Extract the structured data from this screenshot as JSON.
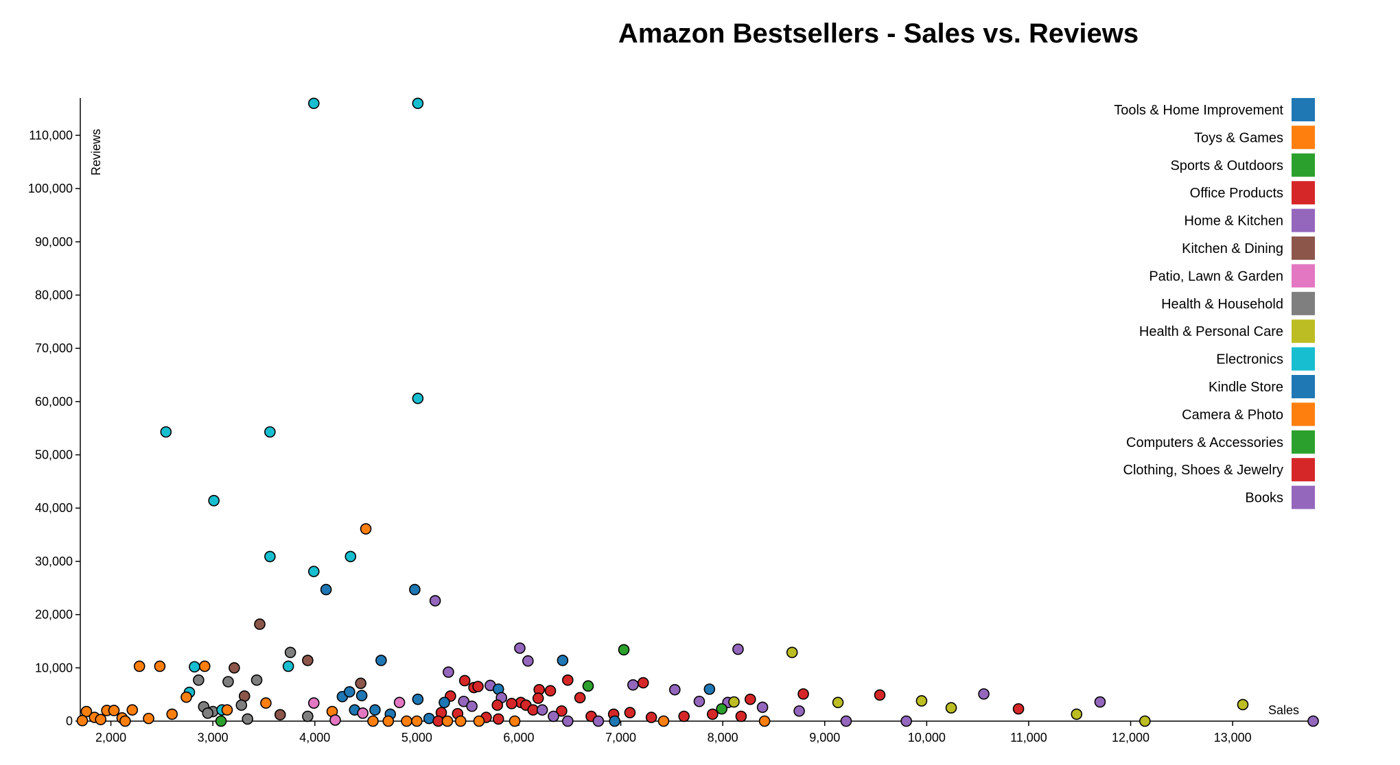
{
  "chart_data": {
    "type": "scatter",
    "title": "Amazon Bestsellers - Sales vs. Reviews",
    "xlabel": "Sales",
    "ylabel": "Reviews",
    "xlim": [
      1700,
      13800
    ],
    "ylim": [
      0,
      117000
    ],
    "x_ticks": [
      2000,
      3000,
      4000,
      5000,
      6000,
      7000,
      8000,
      9000,
      10000,
      11000,
      12000,
      13000
    ],
    "y_ticks": [
      0,
      10000,
      20000,
      30000,
      40000,
      50000,
      60000,
      70000,
      80000,
      90000,
      100000,
      110000
    ],
    "x_tick_labels": [
      "2,000",
      "3,000",
      "4,000",
      "5,000",
      "6,000",
      "7,000",
      "8,000",
      "9,000",
      "10,000",
      "11,000",
      "12,000",
      "13,000"
    ],
    "y_tick_labels": [
      "0",
      "10,000",
      "20,000",
      "30,000",
      "40,000",
      "50,000",
      "60,000",
      "70,000",
      "80,000",
      "90,000",
      "100,000",
      "110,000"
    ],
    "grid": false,
    "legend_position": "top-right",
    "categories": [
      {
        "name": "Tools & Home Improvement",
        "color": "#1f77b4"
      },
      {
        "name": "Toys & Games",
        "color": "#ff7f0e"
      },
      {
        "name": "Sports & Outdoors",
        "color": "#2ca02c"
      },
      {
        "name": "Office Products",
        "color": "#d62728"
      },
      {
        "name": "Home & Kitchen",
        "color": "#9467bd"
      },
      {
        "name": "Kitchen & Dining",
        "color": "#8c564b"
      },
      {
        "name": "Patio, Lawn & Garden",
        "color": "#e377c2"
      },
      {
        "name": "Health & Household",
        "color": "#7f7f7f"
      },
      {
        "name": "Health & Personal Care",
        "color": "#bcbd22"
      },
      {
        "name": "Electronics",
        "color": "#17becf"
      },
      {
        "name": "Kindle Store",
        "color": "#1f77b4"
      },
      {
        "name": "Camera & Photo",
        "color": "#ff7f0e"
      },
      {
        "name": "Computers & Accessories",
        "color": "#2ca02c"
      },
      {
        "name": "Clothing, Shoes & Jewelry",
        "color": "#d62728"
      },
      {
        "name": "Books",
        "color": "#9467bd"
      }
    ],
    "points": [
      {
        "x": 3990,
        "y": 116000,
        "color": "#17becf"
      },
      {
        "x": 5010,
        "y": 116000,
        "color": "#17becf"
      },
      {
        "x": 5010,
        "y": 60600,
        "color": "#17becf"
      },
      {
        "x": 2540,
        "y": 54300,
        "color": "#17becf"
      },
      {
        "x": 3560,
        "y": 54300,
        "color": "#17becf"
      },
      {
        "x": 3010,
        "y": 41400,
        "color": "#17becf"
      },
      {
        "x": 4500,
        "y": 36100,
        "color": "#ff7f0e"
      },
      {
        "x": 3560,
        "y": 30900,
        "color": "#17becf"
      },
      {
        "x": 4350,
        "y": 30900,
        "color": "#17becf"
      },
      {
        "x": 3990,
        "y": 28100,
        "color": "#17becf"
      },
      {
        "x": 4110,
        "y": 24700,
        "color": "#1f77b4"
      },
      {
        "x": 4980,
        "y": 24700,
        "color": "#1f77b4"
      },
      {
        "x": 5180,
        "y": 22600,
        "color": "#9467bd"
      },
      {
        "x": 3460,
        "y": 18200,
        "color": "#8c564b"
      },
      {
        "x": 6010,
        "y": 13700,
        "color": "#9467bd"
      },
      {
        "x": 7030,
        "y": 13400,
        "color": "#2ca02c"
      },
      {
        "x": 8150,
        "y": 13500,
        "color": "#9467bd"
      },
      {
        "x": 8680,
        "y": 12900,
        "color": "#bcbd22"
      },
      {
        "x": 3760,
        "y": 12900,
        "color": "#7f7f7f"
      },
      {
        "x": 3930,
        "y": 11400,
        "color": "#8c564b"
      },
      {
        "x": 4650,
        "y": 11400,
        "color": "#1f77b4"
      },
      {
        "x": 6090,
        "y": 11300,
        "color": "#9467bd"
      },
      {
        "x": 6430,
        "y": 11400,
        "color": "#1f77b4"
      },
      {
        "x": 2280,
        "y": 10300,
        "color": "#ff7f0e"
      },
      {
        "x": 2480,
        "y": 10300,
        "color": "#ff7f0e"
      },
      {
        "x": 2820,
        "y": 10200,
        "color": "#17becf"
      },
      {
        "x": 2920,
        "y": 10300,
        "color": "#ff7f0e"
      },
      {
        "x": 3210,
        "y": 10000,
        "color": "#8c564b"
      },
      {
        "x": 3740,
        "y": 10300,
        "color": "#17becf"
      },
      {
        "x": 5310,
        "y": 9200,
        "color": "#9467bd"
      },
      {
        "x": 2860,
        "y": 7700,
        "color": "#7f7f7f"
      },
      {
        "x": 3150,
        "y": 7400,
        "color": "#7f7f7f"
      },
      {
        "x": 3430,
        "y": 7700,
        "color": "#7f7f7f"
      },
      {
        "x": 4450,
        "y": 7100,
        "color": "#8c564b"
      },
      {
        "x": 5470,
        "y": 7600,
        "color": "#d62728"
      },
      {
        "x": 5560,
        "y": 6300,
        "color": "#d62728"
      },
      {
        "x": 5600,
        "y": 6500,
        "color": "#d62728"
      },
      {
        "x": 5720,
        "y": 6700,
        "color": "#9467bd"
      },
      {
        "x": 5800,
        "y": 6000,
        "color": "#1f77b4"
      },
      {
        "x": 6200,
        "y": 5900,
        "color": "#d62728"
      },
      {
        "x": 6310,
        "y": 5700,
        "color": "#d62728"
      },
      {
        "x": 6480,
        "y": 7700,
        "color": "#d62728"
      },
      {
        "x": 6680,
        "y": 6600,
        "color": "#2ca02c"
      },
      {
        "x": 7120,
        "y": 6800,
        "color": "#9467bd"
      },
      {
        "x": 7220,
        "y": 7200,
        "color": "#d62728"
      },
      {
        "x": 7870,
        "y": 6000,
        "color": "#1f77b4"
      },
      {
        "x": 7530,
        "y": 5900,
        "color": "#9467bd"
      },
      {
        "x": 2770,
        "y": 5400,
        "color": "#17becf"
      },
      {
        "x": 2740,
        "y": 4500,
        "color": "#ff7f0e"
      },
      {
        "x": 3310,
        "y": 4700,
        "color": "#8c564b"
      },
      {
        "x": 4270,
        "y": 4600,
        "color": "#1f77b4"
      },
      {
        "x": 4340,
        "y": 5500,
        "color": "#1f77b4"
      },
      {
        "x": 4460,
        "y": 4800,
        "color": "#1f77b4"
      },
      {
        "x": 5010,
        "y": 4100,
        "color": "#1f77b4"
      },
      {
        "x": 5330,
        "y": 4700,
        "color": "#d62728"
      },
      {
        "x": 5830,
        "y": 4400,
        "color": "#9467bd"
      },
      {
        "x": 6020,
        "y": 3500,
        "color": "#d62728"
      },
      {
        "x": 6190,
        "y": 4300,
        "color": "#d62728"
      },
      {
        "x": 6600,
        "y": 4400,
        "color": "#d62728"
      },
      {
        "x": 7770,
        "y": 3700,
        "color": "#9467bd"
      },
      {
        "x": 8050,
        "y": 3500,
        "color": "#9467bd"
      },
      {
        "x": 8110,
        "y": 3600,
        "color": "#bcbd22"
      },
      {
        "x": 8270,
        "y": 4100,
        "color": "#d62728"
      },
      {
        "x": 8790,
        "y": 5100,
        "color": "#d62728"
      },
      {
        "x": 9540,
        "y": 4900,
        "color": "#d62728"
      },
      {
        "x": 9130,
        "y": 3500,
        "color": "#bcbd22"
      },
      {
        "x": 9950,
        "y": 3800,
        "color": "#bcbd22"
      },
      {
        "x": 10560,
        "y": 5100,
        "color": "#9467bd"
      },
      {
        "x": 11700,
        "y": 3600,
        "color": "#9467bd"
      },
      {
        "x": 13100,
        "y": 3100,
        "color": "#bcbd22"
      },
      {
        "x": 3000,
        "y": 1800,
        "color": "#7f7f7f"
      },
      {
        "x": 3280,
        "y": 3000,
        "color": "#7f7f7f"
      },
      {
        "x": 3520,
        "y": 3400,
        "color": "#ff7f0e"
      },
      {
        "x": 3990,
        "y": 3400,
        "color": "#e377c2"
      },
      {
        "x": 4830,
        "y": 3500,
        "color": "#e377c2"
      },
      {
        "x": 5270,
        "y": 3500,
        "color": "#1f77b4"
      },
      {
        "x": 5460,
        "y": 3700,
        "color": "#9467bd"
      },
      {
        "x": 5540,
        "y": 2800,
        "color": "#9467bd"
      },
      {
        "x": 5790,
        "y": 3000,
        "color": "#d62728"
      },
      {
        "x": 5930,
        "y": 3300,
        "color": "#d62728"
      },
      {
        "x": 6070,
        "y": 3000,
        "color": "#d62728"
      },
      {
        "x": 1760,
        "y": 1800,
        "color": "#ff7f0e"
      },
      {
        "x": 1960,
        "y": 2000,
        "color": "#ff7f0e"
      },
      {
        "x": 2030,
        "y": 2000,
        "color": "#ff7f0e"
      },
      {
        "x": 2210,
        "y": 2100,
        "color": "#ff7f0e"
      },
      {
        "x": 2910,
        "y": 2700,
        "color": "#7f7f7f"
      },
      {
        "x": 3090,
        "y": 2100,
        "color": "#17becf"
      },
      {
        "x": 3140,
        "y": 2100,
        "color": "#ff7f0e"
      },
      {
        "x": 4170,
        "y": 1800,
        "color": "#ff7f0e"
      },
      {
        "x": 4390,
        "y": 2100,
        "color": "#1f77b4"
      },
      {
        "x": 4590,
        "y": 2100,
        "color": "#1f77b4"
      },
      {
        "x": 6140,
        "y": 2100,
        "color": "#d62728"
      },
      {
        "x": 6230,
        "y": 2100,
        "color": "#9467bd"
      },
      {
        "x": 6420,
        "y": 1900,
        "color": "#d62728"
      },
      {
        "x": 7090,
        "y": 1600,
        "color": "#d62728"
      },
      {
        "x": 7990,
        "y": 2300,
        "color": "#2ca02c"
      },
      {
        "x": 8390,
        "y": 2600,
        "color": "#9467bd"
      },
      {
        "x": 8750,
        "y": 1900,
        "color": "#9467bd"
      },
      {
        "x": 10240,
        "y": 2500,
        "color": "#bcbd22"
      },
      {
        "x": 10900,
        "y": 2300,
        "color": "#d62728"
      },
      {
        "x": 11470,
        "y": 1300,
        "color": "#bcbd22"
      },
      {
        "x": 1840,
        "y": 700,
        "color": "#ff7f0e"
      },
      {
        "x": 2110,
        "y": 600,
        "color": "#ff7f0e"
      },
      {
        "x": 2370,
        "y": 500,
        "color": "#ff7f0e"
      },
      {
        "x": 2600,
        "y": 1300,
        "color": "#ff7f0e"
      },
      {
        "x": 2950,
        "y": 1500,
        "color": "#7f7f7f"
      },
      {
        "x": 3340,
        "y": 400,
        "color": "#7f7f7f"
      },
      {
        "x": 3660,
        "y": 1200,
        "color": "#8c564b"
      },
      {
        "x": 3930,
        "y": 900,
        "color": "#7f7f7f"
      },
      {
        "x": 4200,
        "y": 200,
        "color": "#e377c2"
      },
      {
        "x": 4470,
        "y": 1500,
        "color": "#e377c2"
      },
      {
        "x": 4740,
        "y": 1300,
        "color": "#1f77b4"
      },
      {
        "x": 5120,
        "y": 500,
        "color": "#1f77b4"
      },
      {
        "x": 5240,
        "y": 1600,
        "color": "#d62728"
      },
      {
        "x": 5400,
        "y": 1400,
        "color": "#d62728"
      },
      {
        "x": 5680,
        "y": 700,
        "color": "#d62728"
      },
      {
        "x": 5800,
        "y": 400,
        "color": "#d62728"
      },
      {
        "x": 6340,
        "y": 900,
        "color": "#9467bd"
      },
      {
        "x": 6710,
        "y": 900,
        "color": "#d62728"
      },
      {
        "x": 6930,
        "y": 1300,
        "color": "#d62728"
      },
      {
        "x": 7300,
        "y": 700,
        "color": "#d62728"
      },
      {
        "x": 7620,
        "y": 900,
        "color": "#d62728"
      },
      {
        "x": 7900,
        "y": 1300,
        "color": "#d62728"
      },
      {
        "x": 8180,
        "y": 900,
        "color": "#d62728"
      },
      {
        "x": 1720,
        "y": 100,
        "color": "#ff7f0e"
      },
      {
        "x": 1900,
        "y": 300,
        "color": "#ff7f0e"
      },
      {
        "x": 2140,
        "y": 0,
        "color": "#ff7f0e"
      },
      {
        "x": 3080,
        "y": 0,
        "color": "#2ca02c"
      },
      {
        "x": 4570,
        "y": 0,
        "color": "#ff7f0e"
      },
      {
        "x": 4720,
        "y": 0,
        "color": "#ff7f0e"
      },
      {
        "x": 4900,
        "y": 0,
        "color": "#ff7f0e"
      },
      {
        "x": 5000,
        "y": 0,
        "color": "#ff7f0e"
      },
      {
        "x": 5210,
        "y": 0,
        "color": "#d62728"
      },
      {
        "x": 5300,
        "y": 0,
        "color": "#ff7f0e"
      },
      {
        "x": 5430,
        "y": 0,
        "color": "#ff7f0e"
      },
      {
        "x": 5610,
        "y": 0,
        "color": "#ff7f0e"
      },
      {
        "x": 5960,
        "y": 0,
        "color": "#ff7f0e"
      },
      {
        "x": 6480,
        "y": 0,
        "color": "#9467bd"
      },
      {
        "x": 6780,
        "y": 0,
        "color": "#9467bd"
      },
      {
        "x": 6940,
        "y": 0,
        "color": "#1f77b4"
      },
      {
        "x": 7420,
        "y": 0,
        "color": "#ff7f0e"
      },
      {
        "x": 8410,
        "y": 0,
        "color": "#ff7f0e"
      },
      {
        "x": 9210,
        "y": 0,
        "color": "#9467bd"
      },
      {
        "x": 9800,
        "y": 0,
        "color": "#9467bd"
      },
      {
        "x": 12140,
        "y": 0,
        "color": "#bcbd22"
      },
      {
        "x": 13790,
        "y": 0,
        "color": "#9467bd"
      }
    ]
  }
}
